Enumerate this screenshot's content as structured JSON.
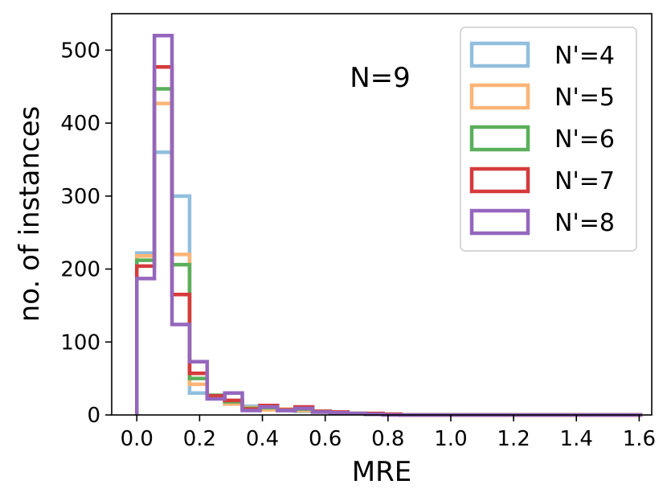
{
  "chart_data": {
    "type": "histogram",
    "xlabel": "MRE",
    "ylabel": "no. of instances",
    "annotation": "N=9",
    "xlim": [
      -0.08,
      1.64
    ],
    "ylim": [
      0,
      550
    ],
    "xticks": [
      "0.0",
      "0.2",
      "0.4",
      "0.6",
      "0.8",
      "1.0",
      "1.2",
      "1.4",
      "1.6"
    ],
    "yticks": [
      "0",
      "100",
      "200",
      "300",
      "400",
      "500"
    ],
    "legend_position": "top-right",
    "bin_edges_note": "step histogram, bin width ~0.056 in MRE",
    "series": [
      {
        "name": "N'=4",
        "color": "#91bfdd",
        "bins": [
          [
            0.0,
            0.056,
            222
          ],
          [
            0.056,
            0.112,
            360
          ],
          [
            0.112,
            0.168,
            300
          ],
          [
            0.168,
            0.224,
            30
          ],
          [
            0.224,
            0.28,
            25
          ],
          [
            0.28,
            0.336,
            15
          ],
          [
            0.336,
            0.392,
            12
          ],
          [
            0.392,
            0.448,
            8
          ],
          [
            0.448,
            0.504,
            6
          ],
          [
            0.504,
            0.56,
            5
          ],
          [
            0.56,
            0.616,
            4
          ],
          [
            0.616,
            0.672,
            3
          ],
          [
            0.672,
            0.728,
            2
          ],
          [
            0.728,
            0.784,
            2
          ],
          [
            0.784,
            0.84,
            1
          ],
          [
            0.84,
            1.61,
            0
          ]
        ]
      },
      {
        "name": "N'=5",
        "color": "#fdb577",
        "bins": [
          [
            0.0,
            0.056,
            218
          ],
          [
            0.056,
            0.112,
            427
          ],
          [
            0.112,
            0.168,
            220
          ],
          [
            0.168,
            0.224,
            42
          ],
          [
            0.224,
            0.28,
            26
          ],
          [
            0.28,
            0.336,
            15
          ],
          [
            0.336,
            0.392,
            10
          ],
          [
            0.392,
            0.448,
            7
          ],
          [
            0.448,
            0.504,
            8
          ],
          [
            0.504,
            0.56,
            6
          ],
          [
            0.56,
            0.616,
            4
          ],
          [
            0.616,
            0.672,
            3
          ],
          [
            0.672,
            0.728,
            2
          ],
          [
            0.728,
            0.784,
            1
          ],
          [
            0.784,
            0.84,
            1
          ],
          [
            0.84,
            1.61,
            0
          ]
        ]
      },
      {
        "name": "N'=6",
        "color": "#5aaf5a",
        "bins": [
          [
            0.0,
            0.056,
            212
          ],
          [
            0.056,
            0.112,
            447
          ],
          [
            0.112,
            0.168,
            206
          ],
          [
            0.168,
            0.224,
            50
          ],
          [
            0.224,
            0.28,
            27
          ],
          [
            0.28,
            0.336,
            18
          ],
          [
            0.336,
            0.392,
            9
          ],
          [
            0.392,
            0.448,
            10
          ],
          [
            0.448,
            0.504,
            7
          ],
          [
            0.504,
            0.56,
            8
          ],
          [
            0.56,
            0.616,
            5
          ],
          [
            0.616,
            0.672,
            3
          ],
          [
            0.672,
            0.728,
            2
          ],
          [
            0.728,
            0.784,
            1
          ],
          [
            0.784,
            0.84,
            1
          ],
          [
            0.84,
            1.61,
            0
          ]
        ]
      },
      {
        "name": "N'=7",
        "color": "#d63a3a",
        "bins": [
          [
            0.0,
            0.056,
            204
          ],
          [
            0.056,
            0.112,
            477
          ],
          [
            0.112,
            0.168,
            165
          ],
          [
            0.168,
            0.224,
            57
          ],
          [
            0.224,
            0.28,
            26
          ],
          [
            0.28,
            0.336,
            20
          ],
          [
            0.336,
            0.392,
            8
          ],
          [
            0.392,
            0.448,
            13
          ],
          [
            0.448,
            0.504,
            7
          ],
          [
            0.504,
            0.56,
            11
          ],
          [
            0.56,
            0.616,
            5
          ],
          [
            0.616,
            0.672,
            4
          ],
          [
            0.672,
            0.728,
            2
          ],
          [
            0.728,
            0.784,
            2
          ],
          [
            0.784,
            0.84,
            1
          ],
          [
            0.84,
            1.61,
            0
          ]
        ]
      },
      {
        "name": "N'=8",
        "color": "#9467bd",
        "bins": [
          [
            0.0,
            0.056,
            187
          ],
          [
            0.056,
            0.112,
            520
          ],
          [
            0.112,
            0.168,
            124
          ],
          [
            0.168,
            0.224,
            73
          ],
          [
            0.224,
            0.28,
            22
          ],
          [
            0.28,
            0.336,
            30
          ],
          [
            0.336,
            0.392,
            6
          ],
          [
            0.392,
            0.448,
            11
          ],
          [
            0.448,
            0.504,
            6
          ],
          [
            0.504,
            0.56,
            9
          ],
          [
            0.56,
            0.616,
            4
          ],
          [
            0.616,
            0.672,
            3
          ],
          [
            0.672,
            0.728,
            2
          ],
          [
            0.728,
            0.784,
            1
          ],
          [
            0.784,
            0.84,
            0
          ],
          [
            0.84,
            1.61,
            0
          ]
        ]
      }
    ]
  }
}
